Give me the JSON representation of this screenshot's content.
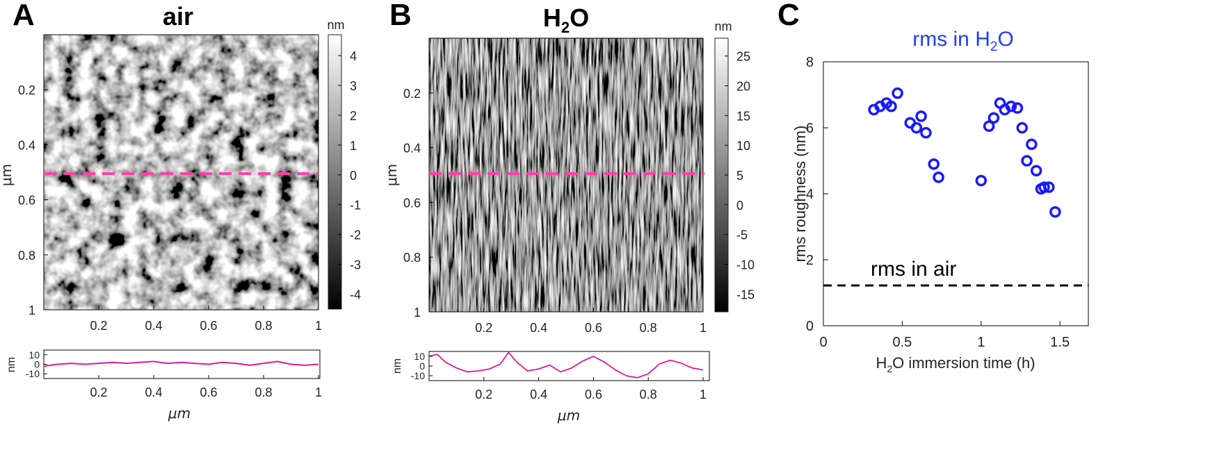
{
  "panels": {
    "A": {
      "letter": "A",
      "title": "air",
      "colorbar_unit": "nm",
      "colorbar_ticks": [
        "4",
        "3",
        "2",
        "1",
        "0",
        "-1",
        "-2",
        "-3",
        "-4"
      ],
      "x_ticks": [
        "0.2",
        "0.4",
        "0.6",
        "0.8",
        "1"
      ],
      "y_ticks": [
        "0.2",
        "0.4",
        "0.6",
        "0.8",
        "1"
      ],
      "y_label": "μm",
      "profile": {
        "y_label": "nm",
        "y_ticks": [
          "10",
          "0",
          "-10"
        ],
        "x_ticks": [
          "0.2",
          "0.4",
          "0.6",
          "0.8",
          "1"
        ],
        "x_label": "μm"
      }
    },
    "B": {
      "letter": "B",
      "title_main": "H",
      "title_sub": "2",
      "title_end": "O",
      "colorbar_unit": "nm",
      "colorbar_ticks": [
        "25",
        "20",
        "15",
        "10",
        "5",
        "0",
        "-5",
        "-10",
        "-15"
      ],
      "x_ticks": [
        "0.2",
        "0.4",
        "0.6",
        "0.8",
        "1"
      ],
      "y_ticks": [
        "0.2",
        "0.4",
        "0.6",
        "0.8",
        "1"
      ],
      "y_label": "μm",
      "profile": {
        "y_label": "nm",
        "y_ticks": [
          "10",
          "0",
          "-10"
        ],
        "x_ticks": [
          "0.2",
          "0.4",
          "0.6",
          "0.8",
          "1"
        ],
        "x_label": "μm"
      }
    },
    "C": {
      "letter": "C"
    }
  },
  "colors": {
    "dashed_line": "#ff3fa6",
    "profile_line": "#e0179a",
    "markers": "#1a1aff",
    "title_blue": "#1e3cff",
    "air_line": "#000000"
  },
  "chart_data": [
    {
      "type": "heatmap",
      "title": "air",
      "colorbar": {
        "unit": "nm",
        "range": [
          -4.5,
          4.7
        ]
      },
      "x_ticks": [
        0.2,
        0.4,
        0.6,
        0.8,
        1
      ],
      "y_ticks": [
        0.2,
        0.4,
        0.6,
        0.8,
        1
      ],
      "ylabel": "μm",
      "profile_at_y": 0.5,
      "profile": {
        "xlabel": "μm",
        "ylabel": "nm",
        "ylim": [
          -15,
          15
        ],
        "x": [
          0,
          0.05,
          0.1,
          0.15,
          0.2,
          0.25,
          0.3,
          0.35,
          0.4,
          0.45,
          0.5,
          0.55,
          0.6,
          0.65,
          0.7,
          0.75,
          0.8,
          0.85,
          0.9,
          0.95,
          1.0
        ],
        "y": [
          -2,
          0,
          1,
          0,
          1,
          2,
          1,
          2,
          3,
          1,
          2,
          1,
          0,
          2,
          1,
          -1,
          1,
          3,
          0,
          -1,
          0
        ]
      }
    },
    {
      "type": "heatmap",
      "title": "H2O",
      "colorbar": {
        "unit": "nm",
        "range": [
          -18,
          28
        ]
      },
      "x_ticks": [
        0.2,
        0.4,
        0.6,
        0.8,
        1
      ],
      "y_ticks": [
        0.2,
        0.4,
        0.6,
        0.8,
        1
      ],
      "ylabel": "μm",
      "profile_at_y": 0.5,
      "profile": {
        "xlabel": "μm",
        "ylabel": "nm",
        "ylim": [
          -15,
          15
        ],
        "x": [
          0,
          0.03,
          0.06,
          0.1,
          0.14,
          0.18,
          0.22,
          0.26,
          0.29,
          0.32,
          0.36,
          0.4,
          0.44,
          0.48,
          0.52,
          0.56,
          0.6,
          0.64,
          0.68,
          0.72,
          0.76,
          0.8,
          0.84,
          0.88,
          0.92,
          0.96,
          1.0
        ],
        "y": [
          10,
          12,
          4,
          -2,
          -6,
          -5,
          -3,
          2,
          14,
          4,
          -5,
          -3,
          1,
          -6,
          -2,
          5,
          10,
          4,
          -4,
          -10,
          -12,
          -8,
          2,
          6,
          3,
          -2,
          -4
        ]
      }
    },
    {
      "type": "scatter",
      "title": "rms in H2O",
      "xlabel": "H2O immersion time (h)",
      "ylabel": "rms roughness (nm)",
      "xlim": [
        0,
        1.68
      ],
      "ylim": [
        0,
        8
      ],
      "x_ticks": [
        "0",
        "0.5",
        "1",
        "1.5"
      ],
      "y_ticks": [
        "0",
        "2",
        "4",
        "6",
        "8"
      ],
      "series": [
        {
          "x": [
            0.32,
            0.36,
            0.4,
            0.43,
            0.47,
            0.55,
            0.59,
            0.62,
            0.65,
            0.7,
            0.73,
            1.0,
            1.05,
            1.08,
            1.12,
            1.15,
            1.19,
            1.23,
            1.26,
            1.29,
            1.32,
            1.35,
            1.38,
            1.4,
            1.43,
            1.47
          ],
          "y": [
            6.55,
            6.65,
            6.75,
            6.65,
            7.05,
            6.15,
            6.0,
            6.35,
            5.85,
            4.9,
            4.5,
            4.4,
            6.05,
            6.3,
            6.75,
            6.55,
            6.65,
            6.6,
            6.0,
            5.0,
            5.5,
            4.7,
            4.15,
            4.2,
            4.2,
            3.45
          ]
        }
      ],
      "reference_line": {
        "label": "rms in air",
        "y": 1.22
      }
    }
  ]
}
